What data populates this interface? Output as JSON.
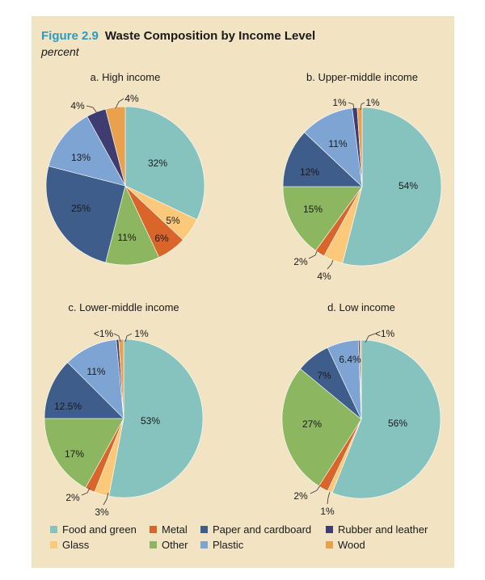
{
  "figure": {
    "number": "Figure 2.9",
    "title": "Waste Composition by Income Level",
    "subtitle": "percent"
  },
  "colors": {
    "food": "#86c3bf",
    "glass": "#fcc97a",
    "metal": "#d9652a",
    "other": "#8db660",
    "paper": "#3e5d8a",
    "plastic": "#7ea4d4",
    "rubber": "#3e3c70",
    "wood": "#e9a14e"
  },
  "legend": [
    {
      "key": "food",
      "label": "Food and green"
    },
    {
      "key": "metal",
      "label": "Metal"
    },
    {
      "key": "paper",
      "label": "Paper and cardboard"
    },
    {
      "key": "rubber",
      "label": "Rubber and leather"
    },
    {
      "key": "glass",
      "label": "Glass"
    },
    {
      "key": "other",
      "label": "Other"
    },
    {
      "key": "plastic",
      "label": "Plastic"
    },
    {
      "key": "wood",
      "label": "Wood"
    }
  ],
  "chart_data": [
    {
      "type": "pie",
      "title": "a. High income",
      "slices": [
        {
          "category": "Food and green",
          "key": "food",
          "value": 32,
          "label": "32%"
        },
        {
          "category": "Glass",
          "key": "glass",
          "value": 5,
          "label": "5%"
        },
        {
          "category": "Metal",
          "key": "metal",
          "value": 6,
          "label": "6%"
        },
        {
          "category": "Other",
          "key": "other",
          "value": 11,
          "label": "11%"
        },
        {
          "category": "Paper and cardboard",
          "key": "paper",
          "value": 25,
          "label": "25%"
        },
        {
          "category": "Plastic",
          "key": "plastic",
          "value": 13,
          "label": "13%"
        },
        {
          "category": "Rubber and leather",
          "key": "rubber",
          "value": 4,
          "label": "4%"
        },
        {
          "category": "Wood",
          "key": "wood",
          "value": 4,
          "label": "4%"
        }
      ]
    },
    {
      "type": "pie",
      "title": "b. Upper-middle income",
      "slices": [
        {
          "category": "Food and green",
          "key": "food",
          "value": 54,
          "label": "54%"
        },
        {
          "category": "Glass",
          "key": "glass",
          "value": 4,
          "label": "4%"
        },
        {
          "category": "Metal",
          "key": "metal",
          "value": 2,
          "label": "2%"
        },
        {
          "category": "Other",
          "key": "other",
          "value": 15,
          "label": "15%"
        },
        {
          "category": "Paper and cardboard",
          "key": "paper",
          "value": 12,
          "label": "12%"
        },
        {
          "category": "Plastic",
          "key": "plastic",
          "value": 11,
          "label": "11%"
        },
        {
          "category": "Rubber and leather",
          "key": "rubber",
          "value": 1,
          "label": "1%"
        },
        {
          "category": "Wood",
          "key": "wood",
          "value": 1,
          "label": "1%"
        }
      ]
    },
    {
      "type": "pie",
      "title": "c. Lower-middle income",
      "slices": [
        {
          "category": "Food and green",
          "key": "food",
          "value": 53,
          "label": "53%"
        },
        {
          "category": "Glass",
          "key": "glass",
          "value": 3,
          "label": "3%"
        },
        {
          "category": "Metal",
          "key": "metal",
          "value": 2,
          "label": "2%"
        },
        {
          "category": "Other",
          "key": "other",
          "value": 17,
          "label": "17%"
        },
        {
          "category": "Paper and cardboard",
          "key": "paper",
          "value": 12.5,
          "label": "12.5%"
        },
        {
          "category": "Plastic",
          "key": "plastic",
          "value": 11,
          "label": "11%"
        },
        {
          "category": "Rubber and leather",
          "key": "rubber",
          "value": 0.5,
          "label": "<1%"
        },
        {
          "category": "Wood",
          "key": "wood",
          "value": 1,
          "label": "1%"
        }
      ]
    },
    {
      "type": "pie",
      "title": "d. Low income",
      "slices": [
        {
          "category": "Food and green",
          "key": "food",
          "value": 56,
          "label": "56%"
        },
        {
          "category": "Glass",
          "key": "glass",
          "value": 1,
          "label": "1%"
        },
        {
          "category": "Metal",
          "key": "metal",
          "value": 2,
          "label": "2%"
        },
        {
          "category": "Other",
          "key": "other",
          "value": 27,
          "label": "27%"
        },
        {
          "category": "Paper and cardboard",
          "key": "paper",
          "value": 7,
          "label": "7%"
        },
        {
          "category": "Plastic",
          "key": "plastic",
          "value": 6.4,
          "label": "6.4%"
        },
        {
          "category": "Rubber and leather",
          "key": "rubber",
          "value": 0.3,
          "label": "<1%"
        },
        {
          "category": "Wood",
          "key": "wood",
          "value": 0.3,
          "label": ""
        }
      ]
    }
  ]
}
